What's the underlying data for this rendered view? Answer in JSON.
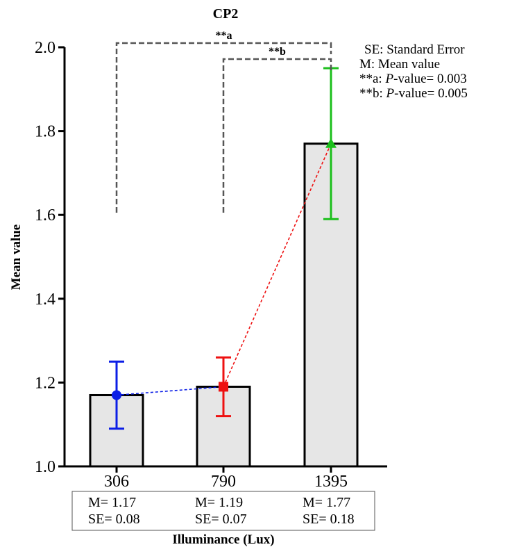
{
  "chart_data": {
    "type": "bar",
    "title": "CP2",
    "xlabel": "Illuminance (Lux)",
    "ylabel": "Mean value",
    "ylim": [
      1.0,
      2.0
    ],
    "yticks": [
      "1.0",
      "1.2",
      "1.4",
      "1.6",
      "1.8",
      "2.0"
    ],
    "categories": [
      "306",
      "790",
      "1395"
    ],
    "values": [
      1.17,
      1.19,
      1.77
    ],
    "errors": [
      0.08,
      0.07,
      0.18
    ],
    "bar_color": "#e6e6e6",
    "markers": [
      {
        "shape": "circle",
        "color": "#0b1ee6"
      },
      {
        "shape": "square",
        "color": "#ee1111"
      },
      {
        "shape": "triangle",
        "color": "#1bbf1b"
      }
    ],
    "stats_labels": [
      {
        "m": "M= 1.17",
        "se": "SE= 0.08"
      },
      {
        "m": "M= 1.19",
        "se": "SE= 0.07"
      },
      {
        "m": "M= 1.77",
        "se": "SE= 0.18"
      }
    ],
    "significance": [
      {
        "label": "**a",
        "from": 0,
        "to": 2
      },
      {
        "label": "**b",
        "from": 1,
        "to": 2
      }
    ],
    "legend": {
      "position": "top-right",
      "lines": [
        {
          "text": "SE: Standard Error"
        },
        {
          "text": "M: Mean value"
        },
        {
          "prefix": "**a:   ",
          "p": "P",
          "suffix": "-value= 0.003"
        },
        {
          "prefix": "**b:   ",
          "p": "P",
          "suffix": "-value= 0.005"
        }
      ]
    }
  }
}
